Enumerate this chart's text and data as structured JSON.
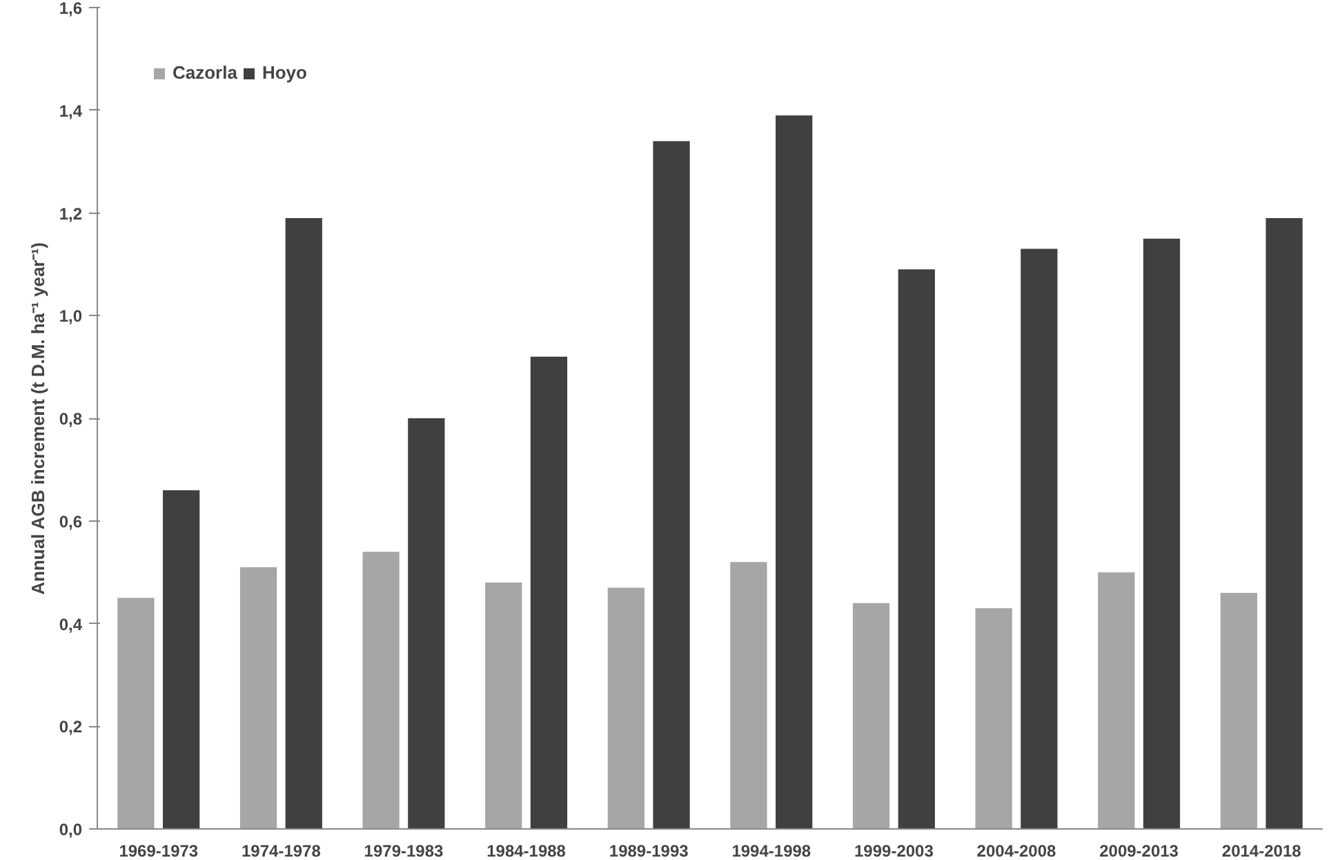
{
  "chart_data": {
    "type": "bar",
    "ylabel": "Annual AGB increment (t D.M. ha⁻¹ year⁻¹)",
    "categories": [
      "1969-1973",
      "1974-1978",
      "1979-1983",
      "1984-1988",
      "1989-1993",
      "1994-1998",
      "1999-2003",
      "2004-2008",
      "2009-2013",
      "2014-2018"
    ],
    "series": [
      {
        "name": "Cazorla",
        "color": "#a6a6a6",
        "values": [
          0.45,
          0.51,
          0.54,
          0.48,
          0.47,
          0.52,
          0.44,
          0.43,
          0.5,
          0.46
        ]
      },
      {
        "name": "Hoyo",
        "color": "#404040",
        "values": [
          0.66,
          1.19,
          0.8,
          0.92,
          1.34,
          1.39,
          1.09,
          1.13,
          1.15,
          1.19
        ]
      }
    ],
    "ylim": [
      0,
      1.6
    ],
    "yticks": [
      {
        "value": 0,
        "label": "0,0"
      },
      {
        "value": 0.2,
        "label": "0,2"
      },
      {
        "value": 0.4,
        "label": "0,4"
      },
      {
        "value": 0.6,
        "label": "0,6"
      },
      {
        "value": 0.8,
        "label": "0,8"
      },
      {
        "value": 1.0,
        "label": "1,0"
      },
      {
        "value": 1.2,
        "label": "1,2"
      },
      {
        "value": 1.4,
        "label": "1,4"
      },
      {
        "value": 1.6,
        "label": "1,6"
      }
    ],
    "grid": false,
    "legend": "top left"
  }
}
